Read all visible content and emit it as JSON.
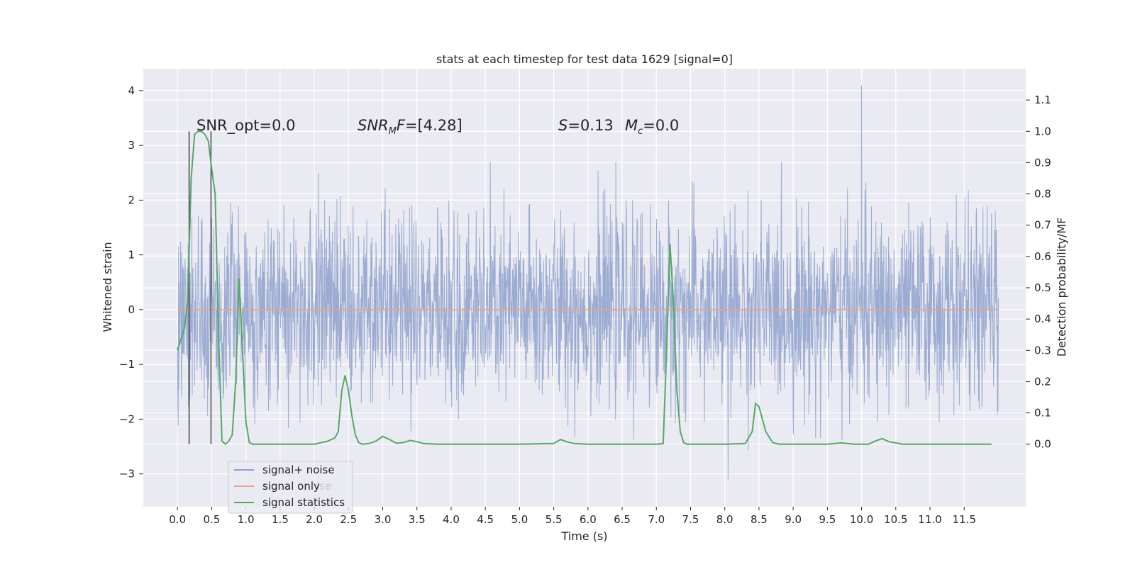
{
  "chart_data": {
    "type": "line",
    "title": "stats at each timestep for test data 1629 [signal=0]",
    "xlabel": "Time (s)",
    "ylabel_left": "Whitened strain",
    "ylabel_right": "Detection probability/MF",
    "xlim": [
      -0.5,
      12.4
    ],
    "ylim_left": [
      -3.6,
      4.4
    ],
    "ylim_right": [
      -0.2,
      1.2
    ],
    "grid": true,
    "x_ticks": [
      0.0,
      0.5,
      1.0,
      1.5,
      2.0,
      2.5,
      3.0,
      3.5,
      4.0,
      4.5,
      5.0,
      5.5,
      6.0,
      6.5,
      7.0,
      7.5,
      8.0,
      8.5,
      9.0,
      9.5,
      10.0,
      10.5,
      11.0,
      11.5
    ],
    "x_tick_labels": [
      "0.0",
      "0.5",
      "1.0",
      "1.5",
      "2.0",
      "2.5",
      "3.0",
      "3.5",
      "4.0",
      "4.5",
      "5.0",
      "5.5",
      "6.0",
      "6.5",
      "7.0",
      "7.5",
      "8.0",
      "8.5",
      "9.0",
      "9.5",
      "10.0",
      "10.5",
      "11.0",
      "11.5"
    ],
    "y_left_ticks": [
      -3,
      -2,
      -1,
      0,
      1,
      2,
      3,
      4
    ],
    "y_left_tick_labels": [
      "−3",
      "−2",
      "−1",
      "0",
      "1",
      "2",
      "3",
      "4"
    ],
    "y_right_ticks": [
      0.0,
      0.1,
      0.2,
      0.3,
      0.4,
      0.5,
      0.6,
      0.7,
      0.8,
      0.9,
      1.0,
      1.1
    ],
    "y_right_tick_labels": [
      "0.0",
      "0.1",
      "0.2",
      "0.3",
      "0.4",
      "0.5",
      "0.6",
      "0.7",
      "0.8",
      "0.9",
      "1.0",
      "1.1"
    ],
    "series": [
      {
        "name": "signal+ noise",
        "color": "#8da0cb",
        "axis": "left",
        "description_values": {
          "x_range": [
            0.0,
            12.0
          ],
          "typical_envelope": [
            -1.9,
            2.3
          ],
          "max_spike": {
            "x": 10.0,
            "y": 4.1
          },
          "min_spike": {
            "x": 8.05,
            "y": -3.1
          }
        }
      },
      {
        "name": "signal only",
        "color": "#e5a58a",
        "axis": "left",
        "x": [
          0.0,
          12.0
        ],
        "y": [
          0.0,
          0.0
        ]
      },
      {
        "name": "signal statistics",
        "color": "#55a868",
        "axis": "right",
        "x": [
          0.0,
          0.1,
          0.15,
          0.2,
          0.25,
          0.3,
          0.35,
          0.4,
          0.45,
          0.5,
          0.55,
          0.6,
          0.65,
          0.7,
          0.75,
          0.8,
          0.85,
          0.9,
          0.95,
          1.0,
          1.05,
          1.1,
          1.2,
          1.5,
          2.0,
          2.2,
          2.3,
          2.35,
          2.4,
          2.45,
          2.5,
          2.55,
          2.6,
          2.65,
          2.7,
          2.8,
          2.9,
          3.0,
          3.1,
          3.2,
          3.3,
          3.4,
          3.5,
          3.6,
          3.8,
          4.5,
          5.0,
          5.5,
          5.6,
          5.7,
          5.8,
          6.0,
          6.5,
          7.0,
          7.1,
          7.15,
          7.2,
          7.25,
          7.3,
          7.35,
          7.4,
          7.45,
          7.5,
          8.0,
          8.3,
          8.4,
          8.45,
          8.5,
          8.55,
          8.6,
          8.7,
          8.8,
          9.0,
          9.5,
          9.7,
          9.9,
          10.1,
          10.2,
          10.3,
          10.4,
          10.6,
          11.0,
          11.5,
          11.9
        ],
        "y": [
          0.3,
          0.37,
          0.46,
          0.85,
          0.99,
          1.0,
          1.0,
          0.99,
          0.97,
          0.88,
          0.8,
          0.35,
          0.01,
          0.0,
          0.01,
          0.03,
          0.2,
          0.53,
          0.3,
          0.07,
          0.005,
          0.0,
          0.0,
          0.0,
          0.0,
          0.01,
          0.02,
          0.04,
          0.17,
          0.22,
          0.17,
          0.09,
          0.03,
          0.005,
          0.0,
          0.002,
          0.01,
          0.025,
          0.015,
          0.003,
          0.005,
          0.012,
          0.008,
          0.002,
          0.0,
          0.0,
          0.0,
          0.002,
          0.015,
          0.007,
          0.002,
          0.0,
          0.0,
          0.0,
          0.002,
          0.3,
          0.64,
          0.45,
          0.17,
          0.04,
          0.005,
          0.0,
          0.0,
          0.0,
          0.002,
          0.04,
          0.13,
          0.12,
          0.08,
          0.04,
          0.005,
          0.0,
          0.0,
          0.0,
          0.004,
          0.0,
          0.0,
          0.01,
          0.018,
          0.008,
          0.0,
          0.0,
          0.0,
          0.0
        ]
      }
    ],
    "vlines": [
      {
        "x": 0.17,
        "ymin": 0.0,
        "ymax": 1.0,
        "color": "#404040"
      },
      {
        "x": 0.49,
        "ymin": 0.0,
        "ymax": 1.0,
        "color": "#404040"
      }
    ],
    "annotations": [
      {
        "text": "SNR_opt=0.0",
        "x": 0.2,
        "y": 1.0
      },
      {
        "text": "SNR_MF=[4.28]",
        "x": 2.6,
        "y": 1.0
      },
      {
        "text": "S=0.13   M_c=0.0",
        "x": 5.6,
        "y": 1.0
      }
    ],
    "annotation_pieces": {
      "snr_opt": "SNR_opt=0.0",
      "snr_mf_main": "SNR",
      "snr_mf_sub": "M",
      "snr_mf_rest": "F",
      "snr_mf_value": "=[4.28]",
      "s_sym": "S",
      "s_value": "=0.13",
      "mc_sym": "M",
      "mc_sub": "c",
      "mc_value": "=0.0"
    },
    "legend": {
      "placement": "lower-left",
      "entries": [
        {
          "label": "signal+ noise",
          "color": "#8da0cb"
        },
        {
          "label": "signal only",
          "color": "#e5a58a"
        },
        {
          "label": "signal statistics",
          "color": "#55a868"
        }
      ],
      "overlapped_text": "ise"
    }
  }
}
